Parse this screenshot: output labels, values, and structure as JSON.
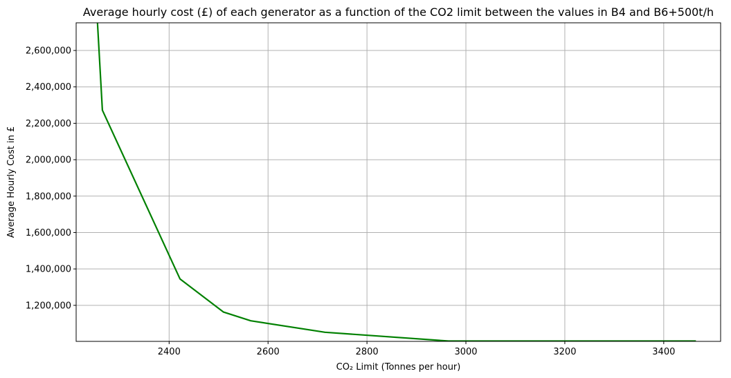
{
  "chart_data": {
    "type": "line",
    "title": "Average hourly cost (£) of each generator as a function of the CO2 limit between the values in B4 and B6+500t/h",
    "xlabel": "CO₂ Limit (Tonnes per hour)",
    "ylabel": "Average Hourly Cost in £",
    "xlim": [
      2212,
      3515
    ],
    "ylim": [
      1002000,
      2752000
    ],
    "xticks": [
      2400,
      2600,
      2800,
      3000,
      3200,
      3400
    ],
    "yticks": [
      1200000,
      1400000,
      1600000,
      1800000,
      2000000,
      2200000,
      2400000,
      2600000
    ],
    "xtick_labels": [
      "2400",
      "2600",
      "2800",
      "3000",
      "3200",
      "3400"
    ],
    "ytick_labels": [
      "1,200,000",
      "1,400,000",
      "1,600,000",
      "1,800,000",
      "2,000,000",
      "2,200,000",
      "2,400,000",
      "2,600,000"
    ],
    "grid": true,
    "series": [
      {
        "color": "#008000",
        "x": [
          2255,
          2265,
          2422,
          2510,
          2565,
          2715,
          2965,
          3465
        ],
        "y": [
          2760000,
          2272000,
          1345000,
          1163000,
          1115000,
          1052000,
          1004000,
          1004000
        ]
      }
    ]
  }
}
